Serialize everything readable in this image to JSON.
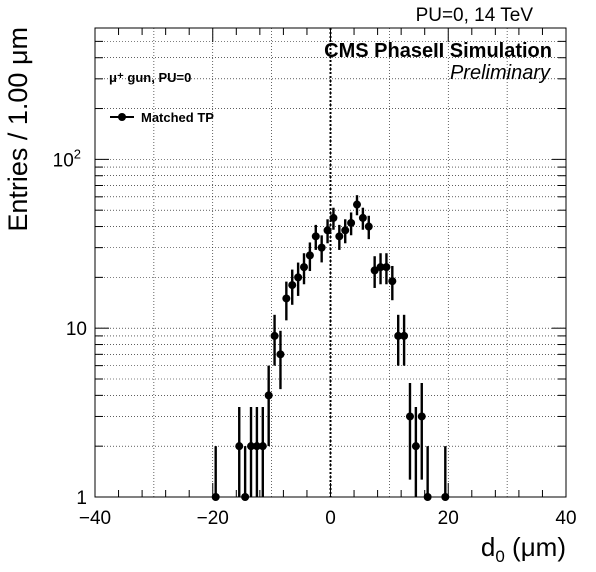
{
  "header": {
    "energy_label": "PU=0, 14 TeV",
    "experiment_label": "CMS PhaseII Simulation",
    "status_label": "Preliminary",
    "sample_label": "μ⁺ gun, PU=0"
  },
  "chart_data": {
    "type": "scatter",
    "xlabel_main": "d",
    "xlabel_sub": "0",
    "xlabel_unit": " (μm)",
    "ylabel": "Entries / 1.00 μm",
    "xlim": [
      -40,
      40
    ],
    "ylim": [
      1,
      600
    ],
    "ylog": true,
    "grid": true,
    "legend_position": "top-left",
    "x_ticks": [
      "−40",
      "−20",
      "0",
      "20",
      "40"
    ],
    "y_ticks": [
      {
        "value": 1,
        "label": "1"
      },
      {
        "value": 10,
        "label": "10"
      },
      {
        "value": 100,
        "label": "10",
        "sup": "2"
      }
    ],
    "reference_line_x": 0,
    "series": [
      {
        "name": "Matched TP",
        "color": "#000000",
        "points": [
          [
            -19.5,
            1
          ],
          [
            -15.5,
            2
          ],
          [
            -14.5,
            1
          ],
          [
            -13.5,
            2
          ],
          [
            -12.5,
            2
          ],
          [
            -11.5,
            2
          ],
          [
            -10.5,
            4
          ],
          [
            -9.5,
            9
          ],
          [
            -8.5,
            7
          ],
          [
            -7.5,
            15
          ],
          [
            -6.5,
            18
          ],
          [
            -5.5,
            20
          ],
          [
            -4.5,
            23
          ],
          [
            -3.5,
            27
          ],
          [
            -2.5,
            35
          ],
          [
            -1.5,
            30
          ],
          [
            -0.5,
            38
          ],
          [
            0.5,
            45
          ],
          [
            1.5,
            35
          ],
          [
            2.5,
            38
          ],
          [
            3.5,
            42
          ],
          [
            4.5,
            54
          ],
          [
            5.5,
            45
          ],
          [
            6.5,
            40
          ],
          [
            7.5,
            22
          ],
          [
            8.5,
            23
          ],
          [
            9.5,
            23
          ],
          [
            10.5,
            19
          ],
          [
            11.5,
            9
          ],
          [
            12.5,
            9
          ],
          [
            13.5,
            3
          ],
          [
            14.5,
            2
          ],
          [
            15.5,
            3
          ],
          [
            16.5,
            1
          ],
          [
            19.5,
            1
          ]
        ]
      }
    ]
  }
}
